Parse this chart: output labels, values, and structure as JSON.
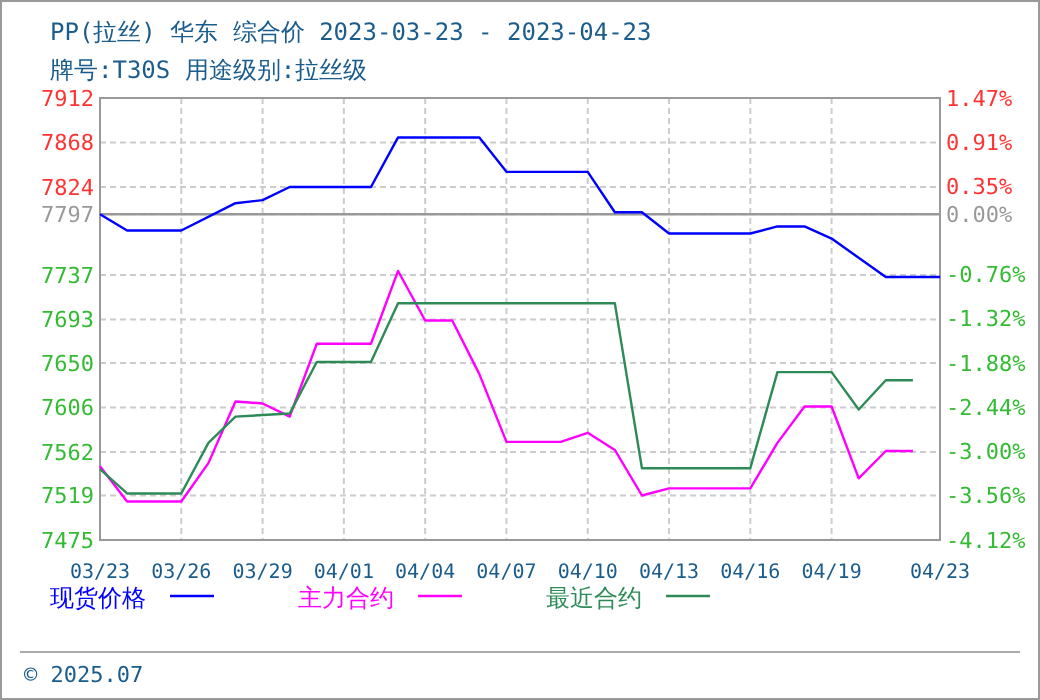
{
  "chart_data": {
    "type": "line",
    "title": "PP(拉丝) 华东 综合价 2023-03-23 - 2023-04-23",
    "subtitle": "牌号:T30S 用途级别:拉丝级",
    "annotations": [
      "© 2025.07"
    ],
    "xlim": [
      "2023-03-23",
      "2023-04-23"
    ],
    "xticks": [
      {
        "value": "2023-03-23",
        "label": "03/23"
      },
      {
        "value": "2023-03-26",
        "label": "03/26"
      },
      {
        "value": "2023-03-29",
        "label": "03/29"
      },
      {
        "value": "2023-04-01",
        "label": "04/01"
      },
      {
        "value": "2023-04-04",
        "label": "04/04"
      },
      {
        "value": "2023-04-07",
        "label": "04/07"
      },
      {
        "value": "2023-04-10",
        "label": "04/10"
      },
      {
        "value": "2023-04-13",
        "label": "04/13"
      },
      {
        "value": "2023-04-16",
        "label": "04/16"
      },
      {
        "value": "2023-04-19",
        "label": "04/19"
      },
      {
        "value": "2023-04-23",
        "label": "04/23"
      }
    ],
    "ylim": [
      7475,
      7912
    ],
    "yticks": [
      7475,
      7519,
      7562,
      7606,
      7650,
      7693,
      7737,
      7797,
      7824,
      7868,
      7912
    ],
    "y2lim": [
      -4.12,
      1.47
    ],
    "y2ticks": [
      {
        "value": -4.12,
        "label": "-4.12%"
      },
      {
        "value": -3.56,
        "label": "-3.56%"
      },
      {
        "value": -3.0,
        "label": "-3.00%"
      },
      {
        "value": -2.44,
        "label": "-2.44%"
      },
      {
        "value": -1.88,
        "label": "-1.88%"
      },
      {
        "value": -1.32,
        "label": "-1.32%"
      },
      {
        "value": -0.76,
        "label": "-0.76%"
      },
      {
        "value": 0,
        "label": "0.00%"
      },
      {
        "value": 0.35,
        "label": "0.35%"
      },
      {
        "value": 0.91,
        "label": "0.91%"
      },
      {
        "value": 1.47,
        "label": "1.47%"
      }
    ],
    "ref_lines": [
      {
        "axis": "y",
        "value": 7797
      }
    ],
    "grid": true,
    "legend": "bottom",
    "marker": "none",
    "line_style": "solid",
    "series": [
      {
        "name": "现货价格",
        "color": "#0000ff",
        "x": [
          "2023-03-23",
          "2023-03-24",
          "2023-03-26",
          "2023-03-28",
          "2023-03-29",
          "2023-03-30",
          "2023-04-02",
          "2023-04-03",
          "2023-04-06",
          "2023-04-07",
          "2023-04-10",
          "2023-04-11",
          "2023-04-12",
          "2023-04-13",
          "2023-04-16",
          "2023-04-17",
          "2023-04-18",
          "2023-04-19",
          "2023-04-21",
          "2023-04-23"
        ],
        "values": [
          7797,
          7781,
          7781,
          7808,
          7811,
          7824,
          7824,
          7873,
          7873,
          7839,
          7839,
          7799,
          7799,
          7778,
          7778,
          7785,
          7785,
          7773,
          7735,
          7735
        ]
      },
      {
        "name": "主力合约",
        "color": "#ff00ff",
        "x": [
          "2023-03-23",
          "2023-03-24",
          "2023-03-26",
          "2023-03-27",
          "2023-03-28",
          "2023-03-29",
          "2023-03-30",
          "2023-03-31",
          "2023-04-02",
          "2023-04-03",
          "2023-04-04",
          "2023-04-05",
          "2023-04-06",
          "2023-04-07",
          "2023-04-09",
          "2023-04-10",
          "2023-04-11",
          "2023-04-12",
          "2023-04-13",
          "2023-04-16",
          "2023-04-17",
          "2023-04-18",
          "2023-04-19",
          "2023-04-20",
          "2023-04-21",
          "2023-04-22"
        ],
        "values": [
          7548,
          7513,
          7513,
          7551,
          7612,
          7610,
          7597,
          7669,
          7669,
          7741,
          7692,
          7692,
          7639,
          7572,
          7572,
          7581,
          7564,
          7519,
          7526,
          7526,
          7571,
          7607,
          7607,
          7536,
          7563,
          7563
        ]
      },
      {
        "name": "最近合约",
        "color": "#2e8b57",
        "x": [
          "2023-03-23",
          "2023-03-24",
          "2023-03-26",
          "2023-03-27",
          "2023-03-28",
          "2023-03-30",
          "2023-03-31",
          "2023-04-02",
          "2023-04-03",
          "2023-04-11",
          "2023-04-12",
          "2023-04-16",
          "2023-04-17",
          "2023-04-19",
          "2023-04-20",
          "2023-04-21",
          "2023-04-22"
        ],
        "values": [
          7545,
          7521,
          7521,
          7571,
          7597,
          7600,
          7651,
          7651,
          7709,
          7709,
          7546,
          7546,
          7641,
          7641,
          7604,
          7633,
          7633
        ]
      }
    ]
  }
}
